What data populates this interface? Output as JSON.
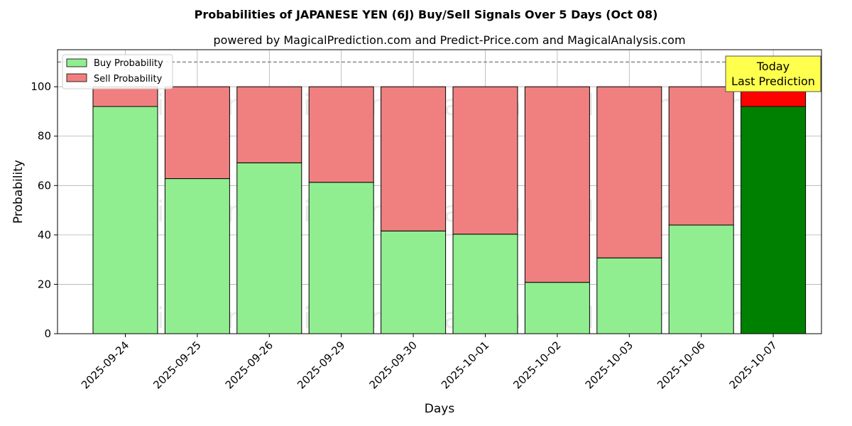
{
  "chart_data": {
    "type": "bar",
    "stacked": true,
    "title": "Probabilities of JAPANESE YEN (6J) Buy/Sell Signals Over 5 Days (Oct 08)",
    "subtitle": "powered by MagicalPrediction.com and Predict-Price.com and MagicalAnalysis.com",
    "xlabel": "Days",
    "ylabel": "Probability",
    "ylim": [
      0,
      115
    ],
    "yticks": [
      0,
      20,
      40,
      60,
      80,
      100
    ],
    "reference_line": 110,
    "grid": true,
    "legend_position": "top-left",
    "categories": [
      "2025-09-24",
      "2025-09-25",
      "2025-09-26",
      "2025-09-29",
      "2025-09-30",
      "2025-10-01",
      "2025-10-02",
      "2025-10-03",
      "2025-10-06",
      "2025-10-07"
    ],
    "series": [
      {
        "name": "Buy Probability",
        "color": "#90ee90",
        "values": [
          92,
          62.8,
          69.2,
          61.3,
          41.6,
          40.3,
          20.8,
          30.7,
          44,
          92
        ]
      },
      {
        "name": "Sell Probability",
        "color": "#f08080",
        "values": [
          8,
          37.2,
          30.8,
          38.7,
          58.4,
          59.7,
          79.2,
          69.3,
          56,
          8
        ]
      }
    ],
    "highlight": {
      "index": 9,
      "buy_color": "#008000",
      "sell_color": "#ff0000"
    },
    "annotation": {
      "lines": [
        "Today",
        "Last Prediction"
      ],
      "background": "#ffff4d"
    },
    "watermarks": [
      "MagicalAnalysis.com",
      "MagicalPrediction.com"
    ]
  }
}
